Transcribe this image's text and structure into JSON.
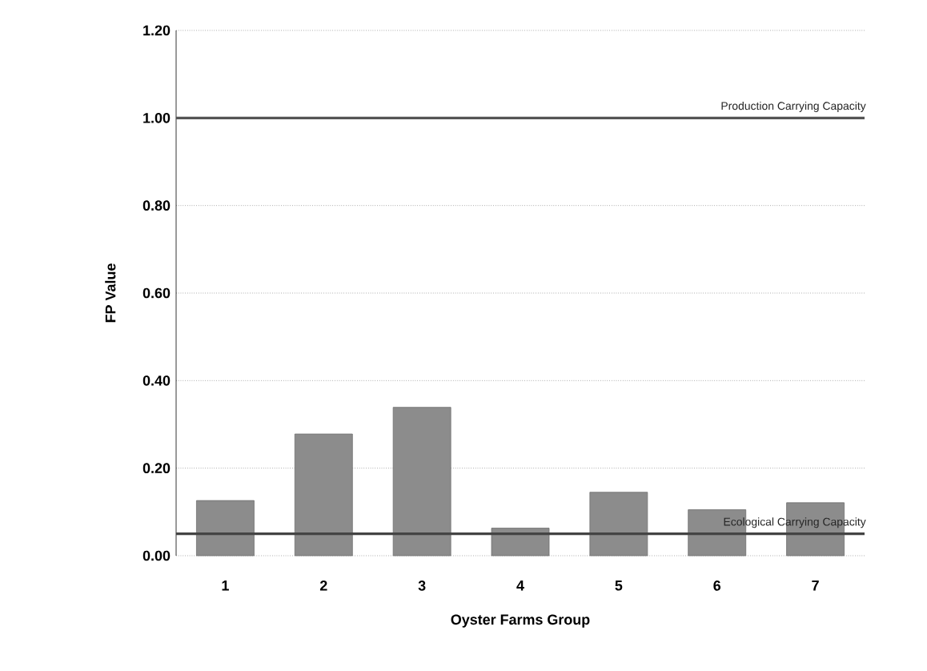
{
  "chart_data": {
    "type": "bar",
    "xlabel": "Oyster Farms Group",
    "ylabel": "FP Value",
    "categories": [
      "1",
      "2",
      "3",
      "4",
      "5",
      "6",
      "7"
    ],
    "values": [
      0.126,
      0.278,
      0.339,
      0.063,
      0.145,
      0.105,
      0.121
    ],
    "color": "#8c8c8c",
    "ylim": [
      0,
      1.2
    ],
    "yticks": [
      {
        "value": 0,
        "label": "0.00"
      },
      {
        "value": 0.2,
        "label": "0.20"
      },
      {
        "value": 0.4,
        "label": "0.40"
      },
      {
        "value": 0.6,
        "label": "0.60"
      },
      {
        "value": 0.8,
        "label": "0.80"
      },
      {
        "value": 1.0,
        "label": "1.00"
      },
      {
        "value": 1.2,
        "label": "1.20"
      }
    ],
    "grid": "y",
    "ref_lines": [
      {
        "axis": "y",
        "value": 1.0,
        "label": "Production Carrying Capacity",
        "color": "#555555"
      },
      {
        "axis": "y",
        "value": 0.05,
        "label": "Ecological Carrying Capacity",
        "color": "#444444"
      }
    ]
  }
}
